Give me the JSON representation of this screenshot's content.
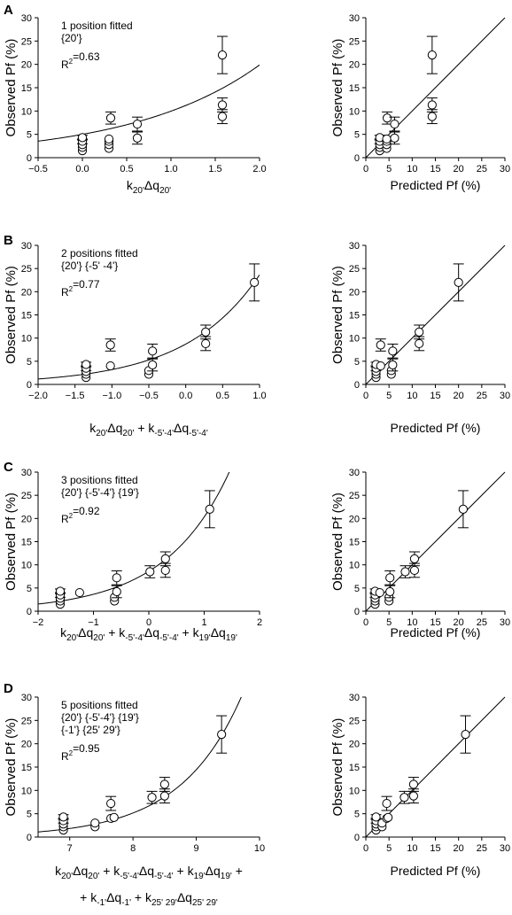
{
  "panel_labels": [
    "A",
    "B",
    "C",
    "D"
  ],
  "chart_data": [
    {
      "id": "A-left",
      "row": 0,
      "col": 0,
      "type": "scatter",
      "ylabel": "Observed Pf (%)",
      "xlabel": [
        [
          "k",
          ""
        ],
        [
          "20'",
          "sub"
        ],
        [
          "Δq",
          ""
        ],
        [
          "20'",
          "sub"
        ]
      ],
      "xlim": [
        -0.5,
        2.0
      ],
      "xticks": [
        -0.5,
        0.0,
        0.5,
        1.0,
        1.5,
        2.0
      ],
      "xdec": 1,
      "ylim": [
        0,
        30
      ],
      "yticks": [
        0,
        5,
        10,
        15,
        20,
        25,
        30
      ],
      "annotation_lines": [
        "1 position fitted",
        "{20'}"
      ],
      "r2_label": "R",
      "r2_sup": "2",
      "r2_value": "=0.63",
      "points": [
        {
          "x": 0.0,
          "y": 1.5,
          "err": 0
        },
        {
          "x": 0.0,
          "y": 2.2,
          "err": 0
        },
        {
          "x": 0.0,
          "y": 2.8,
          "err": 0
        },
        {
          "x": 0.0,
          "y": 3.5,
          "err": 0.5
        },
        {
          "x": 0.0,
          "y": 4.3,
          "err": 0.5
        },
        {
          "x": 0.3,
          "y": 2.0,
          "err": 0
        },
        {
          "x": 0.3,
          "y": 2.8,
          "err": 0
        },
        {
          "x": 0.3,
          "y": 3.5,
          "err": 0
        },
        {
          "x": 0.3,
          "y": 4.0,
          "err": 0
        },
        {
          "x": 0.32,
          "y": 8.5,
          "err": 1.3
        },
        {
          "x": 0.62,
          "y": 4.2,
          "err": 1.3
        },
        {
          "x": 0.62,
          "y": 7.2,
          "err": 1.5
        },
        {
          "x": 1.58,
          "y": 8.8,
          "err": 1.5
        },
        {
          "x": 1.58,
          "y": 11.3,
          "err": 1.5
        },
        {
          "x": 1.58,
          "y": 22.0,
          "err": 4.0
        }
      ],
      "fit": {
        "kind": "exp",
        "a": 5.0,
        "b": 0.69
      }
    },
    {
      "id": "A-right",
      "row": 0,
      "col": 1,
      "type": "scatter",
      "ylabel": "Observed Pf (%)",
      "xlabel": [
        [
          "Predicted Pf (%)",
          ""
        ]
      ],
      "xlim": [
        0,
        30
      ],
      "xticks": [
        0,
        5,
        10,
        15,
        20,
        25,
        30
      ],
      "xdec": 0,
      "ylim": [
        0,
        30
      ],
      "yticks": [
        0,
        5,
        10,
        15,
        20,
        25,
        30
      ],
      "points": [
        {
          "x": 3.0,
          "y": 1.5,
          "err": 0
        },
        {
          "x": 3.0,
          "y": 2.2,
          "err": 0
        },
        {
          "x": 3.0,
          "y": 2.8,
          "err": 0
        },
        {
          "x": 3.0,
          "y": 3.5,
          "err": 0.5
        },
        {
          "x": 3.0,
          "y": 4.3,
          "err": 0.5
        },
        {
          "x": 4.5,
          "y": 2.0,
          "err": 0
        },
        {
          "x": 4.5,
          "y": 2.8,
          "err": 0
        },
        {
          "x": 4.5,
          "y": 3.5,
          "err": 0
        },
        {
          "x": 4.5,
          "y": 4.0,
          "err": 0
        },
        {
          "x": 4.6,
          "y": 8.5,
          "err": 1.3
        },
        {
          "x": 6.2,
          "y": 4.2,
          "err": 1.3
        },
        {
          "x": 6.2,
          "y": 7.2,
          "err": 1.5
        },
        {
          "x": 14.3,
          "y": 8.8,
          "err": 1.5
        },
        {
          "x": 14.3,
          "y": 11.3,
          "err": 1.5
        },
        {
          "x": 14.3,
          "y": 22.0,
          "err": 4.0
        }
      ],
      "fit": {
        "kind": "identity"
      }
    },
    {
      "id": "B-left",
      "row": 1,
      "col": 0,
      "type": "scatter",
      "ylabel": "Observed Pf (%)",
      "xlabel": [
        [
          "k",
          ""
        ],
        [
          "20'",
          "sub"
        ],
        [
          "Δq",
          ""
        ],
        [
          "20'",
          "sub"
        ],
        [
          " + k",
          ""
        ],
        [
          "-5'-4'",
          "sub"
        ],
        [
          "Δq",
          ""
        ],
        [
          "-5'-4'",
          "sub"
        ]
      ],
      "xlim": [
        -2.0,
        1.0
      ],
      "xticks": [
        -2.0,
        -1.5,
        -1.0,
        -0.5,
        0.0,
        0.5,
        1.0
      ],
      "xdec": 1,
      "ylim": [
        0,
        30
      ],
      "yticks": [
        0,
        5,
        10,
        15,
        20,
        25,
        30
      ],
      "annotation_lines": [
        "2 positions fitted",
        "{20'} {-5' -4'}"
      ],
      "r2_label": "R",
      "r2_sup": "2",
      "r2_value": "=0.77",
      "points": [
        {
          "x": -1.35,
          "y": 1.5,
          "err": 0
        },
        {
          "x": -1.35,
          "y": 2.2,
          "err": 0
        },
        {
          "x": -1.35,
          "y": 2.8,
          "err": 0
        },
        {
          "x": -1.35,
          "y": 3.5,
          "err": 0.5
        },
        {
          "x": -1.35,
          "y": 4.3,
          "err": 0.5
        },
        {
          "x": -1.02,
          "y": 4.0,
          "err": 0
        },
        {
          "x": -1.02,
          "y": 8.5,
          "err": 1.3
        },
        {
          "x": -0.5,
          "y": 2.2,
          "err": 0
        },
        {
          "x": -0.5,
          "y": 3.0,
          "err": 0
        },
        {
          "x": -0.45,
          "y": 4.2,
          "err": 1.3
        },
        {
          "x": -0.45,
          "y": 7.2,
          "err": 1.5
        },
        {
          "x": 0.27,
          "y": 8.8,
          "err": 1.5
        },
        {
          "x": 0.27,
          "y": 11.3,
          "err": 1.5
        },
        {
          "x": 0.93,
          "y": 22.0,
          "err": 4.0
        }
      ],
      "fit": {
        "kind": "exp",
        "a": 8.7,
        "b": 1.0
      }
    },
    {
      "id": "B-right",
      "row": 1,
      "col": 1,
      "type": "scatter",
      "ylabel": "Observed Pf (%)",
      "xlabel": [
        [
          "Predicted Pf (%)",
          ""
        ]
      ],
      "xlim": [
        0,
        30
      ],
      "xticks": [
        0,
        5,
        10,
        15,
        20,
        25,
        30
      ],
      "xdec": 0,
      "ylim": [
        0,
        30
      ],
      "yticks": [
        0,
        5,
        10,
        15,
        20,
        25,
        30
      ],
      "points": [
        {
          "x": 2.2,
          "y": 1.5,
          "err": 0
        },
        {
          "x": 2.2,
          "y": 2.2,
          "err": 0
        },
        {
          "x": 2.2,
          "y": 2.8,
          "err": 0
        },
        {
          "x": 2.2,
          "y": 3.5,
          "err": 0.5
        },
        {
          "x": 2.2,
          "y": 4.3,
          "err": 0.5
        },
        {
          "x": 3.2,
          "y": 4.0,
          "err": 0
        },
        {
          "x": 3.2,
          "y": 8.5,
          "err": 1.3
        },
        {
          "x": 5.5,
          "y": 2.2,
          "err": 0
        },
        {
          "x": 5.5,
          "y": 3.0,
          "err": 0
        },
        {
          "x": 5.8,
          "y": 4.2,
          "err": 1.3
        },
        {
          "x": 5.8,
          "y": 7.2,
          "err": 1.5
        },
        {
          "x": 11.5,
          "y": 8.8,
          "err": 1.5
        },
        {
          "x": 11.5,
          "y": 11.3,
          "err": 1.5
        },
        {
          "x": 20.0,
          "y": 22.0,
          "err": 4.0
        }
      ],
      "fit": {
        "kind": "identity"
      }
    },
    {
      "id": "C-left",
      "row": 2,
      "col": 0,
      "type": "scatter",
      "ylabel": "Observed Pf (%)",
      "xlabel": [
        [
          "k",
          ""
        ],
        [
          "20'",
          "sub"
        ],
        [
          "Δq",
          ""
        ],
        [
          "20'",
          "sub"
        ],
        [
          " + k",
          ""
        ],
        [
          "-5'-4'",
          "sub"
        ],
        [
          "Δq",
          ""
        ],
        [
          "-5'-4'",
          "sub"
        ],
        [
          " + k",
          ""
        ],
        [
          "19'",
          "sub"
        ],
        [
          "Δq",
          ""
        ],
        [
          "19'",
          "sub"
        ]
      ],
      "xlim": [
        -2,
        2
      ],
      "xticks": [
        -2,
        -1,
        0,
        1,
        2
      ],
      "xdec": 0,
      "ylim": [
        0,
        30
      ],
      "yticks": [
        0,
        5,
        10,
        15,
        20,
        25,
        30
      ],
      "annotation_lines": [
        "3 positions fitted",
        "{20'} {-5'-4'} {19'}"
      ],
      "r2_label": "R",
      "r2_sup": "2",
      "r2_value": "=0.92",
      "points": [
        {
          "x": -1.6,
          "y": 1.5,
          "err": 0
        },
        {
          "x": -1.6,
          "y": 2.2,
          "err": 0
        },
        {
          "x": -1.6,
          "y": 2.8,
          "err": 0
        },
        {
          "x": -1.6,
          "y": 3.5,
          "err": 0.5
        },
        {
          "x": -1.6,
          "y": 4.3,
          "err": 0.5
        },
        {
          "x": -1.25,
          "y": 4.0,
          "err": 0
        },
        {
          "x": -0.62,
          "y": 2.2,
          "err": 0
        },
        {
          "x": -0.62,
          "y": 3.0,
          "err": 0
        },
        {
          "x": -0.58,
          "y": 4.2,
          "err": 1.3
        },
        {
          "x": -0.58,
          "y": 7.2,
          "err": 1.5
        },
        {
          "x": 0.02,
          "y": 8.5,
          "err": 1.3
        },
        {
          "x": 0.3,
          "y": 8.8,
          "err": 1.5
        },
        {
          "x": 0.3,
          "y": 11.3,
          "err": 1.5
        },
        {
          "x": 1.1,
          "y": 22.0,
          "err": 4.0
        }
      ],
      "fit": {
        "kind": "exp",
        "a": 8.6,
        "b": 0.86
      }
    },
    {
      "id": "C-right",
      "row": 2,
      "col": 1,
      "type": "scatter",
      "ylabel": "Observed Pf (%)",
      "xlabel": [
        [
          "Predicted Pf (%)",
          ""
        ]
      ],
      "xlim": [
        0,
        30
      ],
      "xticks": [
        0,
        5,
        10,
        15,
        20,
        25,
        30
      ],
      "xdec": 0,
      "ylim": [
        0,
        30
      ],
      "yticks": [
        0,
        5,
        10,
        15,
        20,
        25,
        30
      ],
      "points": [
        {
          "x": 2.0,
          "y": 1.5,
          "err": 0
        },
        {
          "x": 2.0,
          "y": 2.2,
          "err": 0
        },
        {
          "x": 2.0,
          "y": 2.8,
          "err": 0
        },
        {
          "x": 2.0,
          "y": 3.5,
          "err": 0.5
        },
        {
          "x": 2.0,
          "y": 4.3,
          "err": 0.5
        },
        {
          "x": 3.0,
          "y": 4.0,
          "err": 0
        },
        {
          "x": 5.0,
          "y": 2.2,
          "err": 0
        },
        {
          "x": 5.0,
          "y": 3.0,
          "err": 0
        },
        {
          "x": 5.2,
          "y": 4.2,
          "err": 1.3
        },
        {
          "x": 5.2,
          "y": 7.2,
          "err": 1.5
        },
        {
          "x": 8.5,
          "y": 8.5,
          "err": 1.3
        },
        {
          "x": 10.5,
          "y": 8.8,
          "err": 1.5
        },
        {
          "x": 10.5,
          "y": 11.3,
          "err": 1.5
        },
        {
          "x": 21.0,
          "y": 22.0,
          "err": 4.0
        }
      ],
      "fit": {
        "kind": "identity"
      }
    },
    {
      "id": "D-left",
      "row": 3,
      "col": 0,
      "type": "scatter",
      "ylabel": "Observed Pf (%)",
      "xlabel": [
        [
          "k",
          ""
        ],
        [
          "20'",
          "sub"
        ],
        [
          "Δq",
          ""
        ],
        [
          "20'",
          "sub"
        ],
        [
          " + k",
          ""
        ],
        [
          "-5'-4'",
          "sub"
        ],
        [
          "Δq",
          ""
        ],
        [
          "-5'-4'",
          "sub"
        ],
        [
          " + k",
          ""
        ],
        [
          "19'",
          "sub"
        ],
        [
          "Δq",
          ""
        ],
        [
          "19'",
          "sub"
        ],
        [
          " +",
          ""
        ]
      ],
      "xlabel2": [
        [
          "+ k",
          ""
        ],
        [
          "-1'",
          "sub"
        ],
        [
          "Δq",
          ""
        ],
        [
          "-1'",
          "sub"
        ],
        [
          " + k",
          ""
        ],
        [
          "25' 29'",
          "sub"
        ],
        [
          "Δq",
          ""
        ],
        [
          "25' 29'",
          "sub"
        ]
      ],
      "xlim": [
        6.5,
        10
      ],
      "xticks": [
        7,
        8,
        9,
        10
      ],
      "xdec": 0,
      "ylim": [
        0,
        30
      ],
      "yticks": [
        0,
        5,
        10,
        15,
        20,
        25,
        30
      ],
      "annotation_lines": [
        "5 positions fitted",
        "{20'} {-5'-4'} {19'}",
        "{-1'} {25' 29'}"
      ],
      "r2_label": "R",
      "r2_sup": "2",
      "r2_value": "=0.95",
      "points": [
        {
          "x": 6.9,
          "y": 1.5,
          "err": 0
        },
        {
          "x": 6.9,
          "y": 2.2,
          "err": 0
        },
        {
          "x": 6.9,
          "y": 2.8,
          "err": 0
        },
        {
          "x": 6.9,
          "y": 3.5,
          "err": 0.5
        },
        {
          "x": 6.9,
          "y": 4.3,
          "err": 0.5
        },
        {
          "x": 7.4,
          "y": 2.2,
          "err": 0
        },
        {
          "x": 7.4,
          "y": 3.0,
          "err": 0
        },
        {
          "x": 7.65,
          "y": 4.0,
          "err": 0
        },
        {
          "x": 7.65,
          "y": 7.2,
          "err": 1.5
        },
        {
          "x": 7.7,
          "y": 4.2,
          "err": 0
        },
        {
          "x": 8.3,
          "y": 8.5,
          "err": 1.3
        },
        {
          "x": 8.5,
          "y": 8.8,
          "err": 1.5
        },
        {
          "x": 8.5,
          "y": 11.3,
          "err": 1.5
        },
        {
          "x": 9.4,
          "y": 22.0,
          "err": 4.0
        }
      ],
      "fit": {
        "kind": "exp",
        "a": 0.00136,
        "b": 1.03
      }
    },
    {
      "id": "D-right",
      "row": 3,
      "col": 1,
      "type": "scatter",
      "ylabel": "Observed Pf (%)",
      "xlabel": [
        [
          "Predicted Pf (%)",
          ""
        ]
      ],
      "xlim": [
        0,
        30
      ],
      "xticks": [
        0,
        5,
        10,
        15,
        20,
        25,
        30
      ],
      "xdec": 0,
      "ylim": [
        0,
        30
      ],
      "yticks": [
        0,
        5,
        10,
        15,
        20,
        25,
        30
      ],
      "points": [
        {
          "x": 2.2,
          "y": 1.5,
          "err": 0
        },
        {
          "x": 2.2,
          "y": 2.2,
          "err": 0
        },
        {
          "x": 2.2,
          "y": 2.8,
          "err": 0
        },
        {
          "x": 2.2,
          "y": 3.5,
          "err": 0.5
        },
        {
          "x": 2.2,
          "y": 4.3,
          "err": 0.5
        },
        {
          "x": 3.5,
          "y": 2.2,
          "err": 0
        },
        {
          "x": 3.5,
          "y": 3.0,
          "err": 0
        },
        {
          "x": 4.5,
          "y": 4.0,
          "err": 0
        },
        {
          "x": 4.5,
          "y": 7.2,
          "err": 1.5
        },
        {
          "x": 4.8,
          "y": 4.2,
          "err": 0
        },
        {
          "x": 8.3,
          "y": 8.5,
          "err": 1.3
        },
        {
          "x": 10.3,
          "y": 8.8,
          "err": 1.5
        },
        {
          "x": 10.3,
          "y": 11.3,
          "err": 1.5
        },
        {
          "x": 21.5,
          "y": 22.0,
          "err": 4.0
        }
      ],
      "fit": {
        "kind": "identity"
      }
    }
  ]
}
